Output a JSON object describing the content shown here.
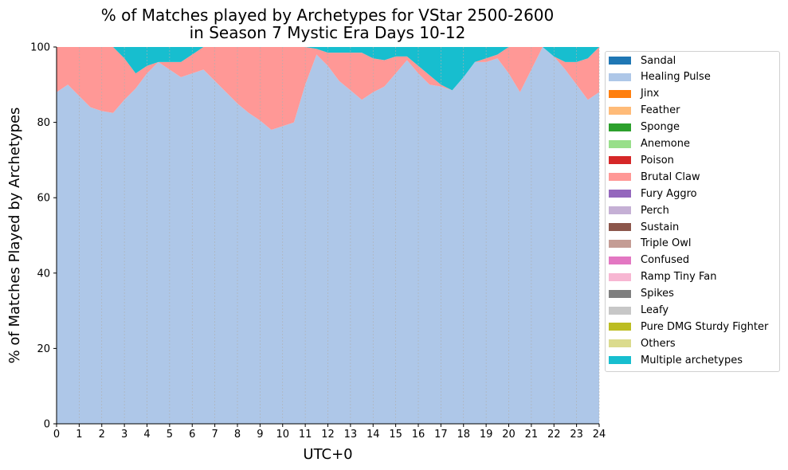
{
  "chart_data": {
    "type": "area",
    "stacked": true,
    "title_line1": "% of Matches played by Archetypes for VStar 2500-2600",
    "title_line2": "in Season 7 Mystic Era Days 10-12",
    "xlabel": "UTC+0",
    "ylabel": "% of Matches Played by Archetypes",
    "xlim": [
      0,
      24
    ],
    "ylim": [
      0,
      100
    ],
    "xticks": [
      "0",
      "1",
      "2",
      "3",
      "4",
      "5",
      "6",
      "7",
      "8",
      "9",
      "10",
      "11",
      "12",
      "13",
      "14",
      "15",
      "16",
      "17",
      "18",
      "19",
      "20",
      "21",
      "22",
      "23",
      "24"
    ],
    "yticks": [
      "0",
      "20",
      "40",
      "60",
      "80",
      "100"
    ],
    "grid": "vertical",
    "legend_position": "outside-right",
    "x": [
      0,
      0.5,
      1,
      1.5,
      2,
      2.5,
      3,
      3.5,
      4,
      4.5,
      5,
      5.5,
      6,
      6.5,
      7,
      7.5,
      8,
      8.5,
      9,
      9.5,
      10,
      10.5,
      11,
      11.5,
      12,
      12.5,
      13,
      13.5,
      14,
      14.5,
      15,
      15.5,
      16,
      16.5,
      17,
      17.5,
      18,
      18.5,
      19,
      19.5,
      20,
      20.5,
      21,
      21.5,
      22,
      22.5,
      23,
      23.5,
      24
    ],
    "series": [
      {
        "name": "Sandal",
        "color": "#1f77b4",
        "values": [
          0,
          0,
          0,
          0,
          0,
          0,
          0,
          0,
          0,
          0,
          0,
          0,
          0,
          0,
          0,
          0,
          0,
          0,
          0,
          0,
          0,
          0,
          0,
          0,
          0,
          0,
          0,
          0,
          0,
          0,
          0,
          0,
          0,
          0,
          0,
          0,
          0,
          0,
          0,
          0,
          0,
          0,
          0,
          0,
          0,
          0,
          0,
          0,
          0
        ]
      },
      {
        "name": "Healing Pulse",
        "color": "#aec7e8",
        "values": [
          88,
          90,
          87,
          84,
          83,
          82.5,
          86,
          89,
          93,
          96,
          94,
          92,
          93,
          94,
          91,
          88,
          85,
          82.5,
          80.5,
          78,
          79,
          80,
          90,
          98,
          95,
          91,
          88.5,
          86,
          88,
          89.5,
          93,
          96.5,
          93,
          90,
          89.5,
          88.5,
          92,
          96,
          96,
          97,
          93,
          88,
          94,
          100,
          97.5,
          94,
          90,
          86,
          88
        ]
      },
      {
        "name": "Jinx",
        "color": "#ff7f0e",
        "values": [
          0,
          0,
          0,
          0,
          0,
          0,
          0,
          0,
          0,
          0,
          0,
          0,
          0,
          0,
          0,
          0,
          0,
          0,
          0,
          0,
          0,
          0,
          0,
          0,
          0,
          0,
          0,
          0,
          0,
          0,
          0,
          0,
          0,
          0,
          0,
          0,
          0,
          0,
          0,
          0,
          0,
          0,
          0,
          0,
          0,
          0,
          0,
          0,
          0
        ]
      },
      {
        "name": "Feather",
        "color": "#ffbb78",
        "values": [
          0,
          0,
          0,
          0,
          0,
          0,
          0,
          0,
          0,
          0,
          0,
          0,
          0,
          0,
          0,
          0,
          0,
          0,
          0,
          0,
          0,
          0,
          0,
          0,
          0,
          0,
          0,
          0,
          0,
          0,
          0,
          0,
          0,
          0,
          0,
          0,
          0,
          0,
          0,
          0,
          0,
          0,
          0,
          0,
          0,
          0,
          0,
          0,
          0
        ]
      },
      {
        "name": "Sponge",
        "color": "#2ca02c",
        "values": [
          0,
          0,
          0,
          0,
          0,
          0,
          0,
          0,
          0,
          0,
          0,
          0,
          0,
          0,
          0,
          0,
          0,
          0,
          0,
          0,
          0,
          0,
          0,
          0,
          0,
          0,
          0,
          0,
          0,
          0,
          0,
          0,
          0,
          0,
          0,
          0,
          0,
          0,
          0,
          0,
          0,
          0,
          0,
          0,
          0,
          0,
          0,
          0,
          0
        ]
      },
      {
        "name": "Anemone",
        "color": "#98df8a",
        "values": [
          0,
          0,
          0,
          0,
          0,
          0,
          0,
          0,
          0,
          0,
          0,
          0,
          0,
          0,
          0,
          0,
          0,
          0,
          0,
          0,
          0,
          0,
          0,
          0,
          0,
          0,
          0,
          0,
          0,
          0,
          0,
          0,
          0,
          0,
          0,
          0,
          0,
          0,
          0,
          0,
          0,
          0,
          0,
          0,
          0,
          0,
          0,
          0,
          0
        ]
      },
      {
        "name": "Poison",
        "color": "#d62728",
        "values": [
          0,
          0,
          0,
          0,
          0,
          0,
          0,
          0,
          0,
          0,
          0,
          0,
          0,
          0,
          0,
          0,
          0,
          0,
          0,
          0,
          0,
          0,
          0,
          0,
          0,
          0,
          0,
          0,
          0,
          0,
          0,
          0,
          0,
          0,
          0,
          0,
          0,
          0,
          0,
          0,
          0,
          0,
          0,
          0,
          0,
          0,
          0,
          0,
          0
        ]
      },
      {
        "name": "Brutal Claw",
        "color": "#ff9896",
        "values": [
          12,
          10,
          13,
          16,
          17,
          17.5,
          11,
          4,
          2,
          0,
          2,
          4,
          5,
          6,
          9,
          12,
          15,
          17.5,
          19.5,
          22,
          21,
          20,
          10,
          1.5,
          3.5,
          7.5,
          10,
          12.5,
          9,
          7,
          4.5,
          1,
          2,
          2.5,
          0.5,
          0,
          0,
          0,
          1,
          1,
          7,
          12,
          6,
          0,
          0,
          2,
          6,
          11,
          12
        ]
      },
      {
        "name": "Fury Aggro",
        "color": "#9467bd",
        "values": [
          0,
          0,
          0,
          0,
          0,
          0,
          0,
          0,
          0,
          0,
          0,
          0,
          0,
          0,
          0,
          0,
          0,
          0,
          0,
          0,
          0,
          0,
          0,
          0,
          0,
          0,
          0,
          0,
          0,
          0,
          0,
          0,
          0,
          0,
          0,
          0,
          0,
          0,
          0,
          0,
          0,
          0,
          0,
          0,
          0,
          0,
          0,
          0,
          0
        ]
      },
      {
        "name": "Perch",
        "color": "#c5b0d5",
        "values": [
          0,
          0,
          0,
          0,
          0,
          0,
          0,
          0,
          0,
          0,
          0,
          0,
          0,
          0,
          0,
          0,
          0,
          0,
          0,
          0,
          0,
          0,
          0,
          0,
          0,
          0,
          0,
          0,
          0,
          0,
          0,
          0,
          0,
          0,
          0,
          0,
          0,
          0,
          0,
          0,
          0,
          0,
          0,
          0,
          0,
          0,
          0,
          0,
          0
        ]
      },
      {
        "name": "Sustain",
        "color": "#8c564b",
        "values": [
          0,
          0,
          0,
          0,
          0,
          0,
          0,
          0,
          0,
          0,
          0,
          0,
          0,
          0,
          0,
          0,
          0,
          0,
          0,
          0,
          0,
          0,
          0,
          0,
          0,
          0,
          0,
          0,
          0,
          0,
          0,
          0,
          0,
          0,
          0,
          0,
          0,
          0,
          0,
          0,
          0,
          0,
          0,
          0,
          0,
          0,
          0,
          0,
          0
        ]
      },
      {
        "name": "Triple Owl",
        "color": "#c49c94",
        "values": [
          0,
          0,
          0,
          0,
          0,
          0,
          0,
          0,
          0,
          0,
          0,
          0,
          0,
          0,
          0,
          0,
          0,
          0,
          0,
          0,
          0,
          0,
          0,
          0,
          0,
          0,
          0,
          0,
          0,
          0,
          0,
          0,
          0,
          0,
          0,
          0,
          0,
          0,
          0,
          0,
          0,
          0,
          0,
          0,
          0,
          0,
          0,
          0,
          0
        ]
      },
      {
        "name": "Confused",
        "color": "#e377c2",
        "values": [
          0,
          0,
          0,
          0,
          0,
          0,
          0,
          0,
          0,
          0,
          0,
          0,
          0,
          0,
          0,
          0,
          0,
          0,
          0,
          0,
          0,
          0,
          0,
          0,
          0,
          0,
          0,
          0,
          0,
          0,
          0,
          0,
          0,
          0,
          0,
          0,
          0,
          0,
          0,
          0,
          0,
          0,
          0,
          0,
          0,
          0,
          0,
          0,
          0
        ]
      },
      {
        "name": "Ramp Tiny Fan",
        "color": "#f7b6d2",
        "values": [
          0,
          0,
          0,
          0,
          0,
          0,
          0,
          0,
          0,
          0,
          0,
          0,
          0,
          0,
          0,
          0,
          0,
          0,
          0,
          0,
          0,
          0,
          0,
          0,
          0,
          0,
          0,
          0,
          0,
          0,
          0,
          0,
          0,
          0,
          0,
          0,
          0,
          0,
          0,
          0,
          0,
          0,
          0,
          0,
          0,
          0,
          0,
          0,
          0
        ]
      },
      {
        "name": "Spikes",
        "color": "#7f7f7f",
        "values": [
          0,
          0,
          0,
          0,
          0,
          0,
          0,
          0,
          0,
          0,
          0,
          0,
          0,
          0,
          0,
          0,
          0,
          0,
          0,
          0,
          0,
          0,
          0,
          0,
          0,
          0,
          0,
          0,
          0,
          0,
          0,
          0,
          0,
          0,
          0,
          0,
          0,
          0,
          0,
          0,
          0,
          0,
          0,
          0,
          0,
          0,
          0,
          0,
          0
        ]
      },
      {
        "name": "Leafy",
        "color": "#c7c7c7",
        "values": [
          0,
          0,
          0,
          0,
          0,
          0,
          0,
          0,
          0,
          0,
          0,
          0,
          0,
          0,
          0,
          0,
          0,
          0,
          0,
          0,
          0,
          0,
          0,
          0,
          0,
          0,
          0,
          0,
          0,
          0,
          0,
          0,
          0,
          0,
          0,
          0,
          0,
          0,
          0,
          0,
          0,
          0,
          0,
          0,
          0,
          0,
          0,
          0,
          0
        ]
      },
      {
        "name": "Pure DMG Sturdy Fighter",
        "color": "#bcbd22",
        "values": [
          0,
          0,
          0,
          0,
          0,
          0,
          0,
          0,
          0,
          0,
          0,
          0,
          0,
          0,
          0,
          0,
          0,
          0,
          0,
          0,
          0,
          0,
          0,
          0,
          0,
          0,
          0,
          0,
          0,
          0,
          0,
          0,
          0,
          0,
          0,
          0,
          0,
          0,
          0,
          0,
          0,
          0,
          0,
          0,
          0,
          0,
          0,
          0,
          0
        ]
      },
      {
        "name": "Others",
        "color": "#dbdb8d",
        "values": [
          0,
          0,
          0,
          0,
          0,
          0,
          0,
          0,
          0,
          0,
          0,
          0,
          0,
          0,
          0,
          0,
          0,
          0,
          0,
          0,
          0,
          0,
          0,
          0,
          0,
          0,
          0,
          0,
          0,
          0,
          0,
          0,
          0,
          0,
          0,
          0,
          0,
          0,
          0,
          0,
          0,
          0,
          0,
          0,
          0,
          0,
          0,
          0,
          0
        ]
      },
      {
        "name": "Multiple archetypes",
        "color": "#17becf",
        "values": [
          0,
          0,
          0,
          0,
          0,
          0,
          3,
          7,
          5,
          4,
          4,
          4,
          2,
          0,
          0,
          0,
          0,
          0,
          0,
          0,
          0,
          0,
          0,
          0.5,
          1.5,
          1.5,
          1.5,
          1.5,
          3,
          3.5,
          2.5,
          2.5,
          5,
          7.5,
          10,
          11.5,
          8,
          4,
          3,
          2,
          0,
          0,
          0,
          0,
          2.5,
          4,
          4,
          3,
          0
        ]
      }
    ]
  }
}
